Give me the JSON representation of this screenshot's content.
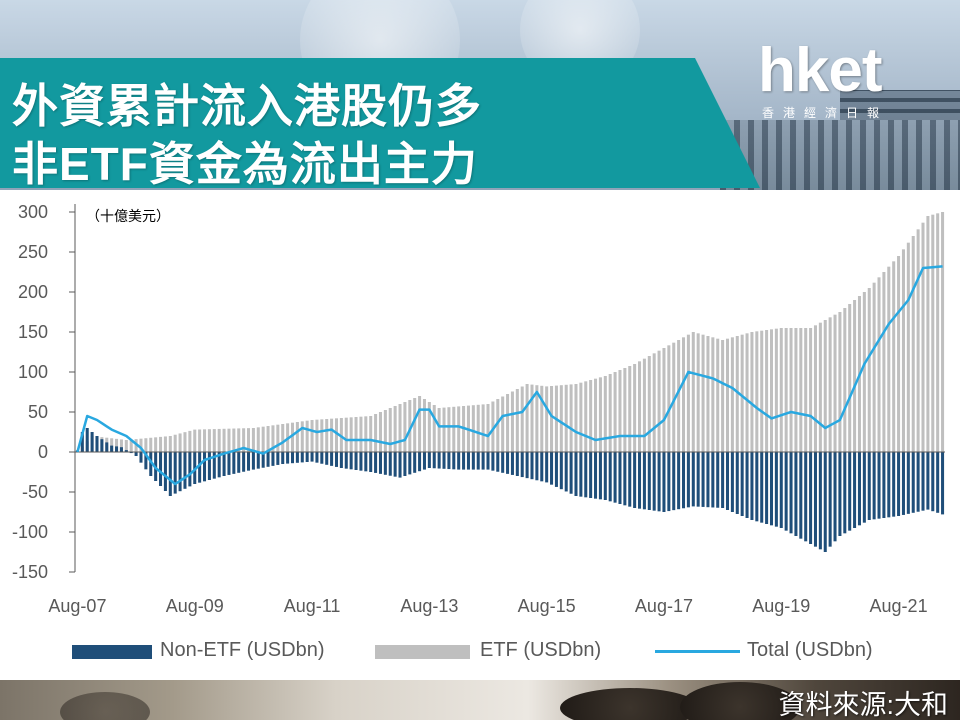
{
  "title": {
    "line1": "外資累計流入港股仍多",
    "line2": "非ETF資金為流出主力"
  },
  "logo": {
    "word": "hket",
    "subtitle": "香港經濟日報"
  },
  "source": "資料來源:大和",
  "colors": {
    "title_band": "#12999f",
    "non_etf": "#1f4e79",
    "etf": "#bfbfbf",
    "total": "#29a8e0"
  },
  "chart_data": {
    "type": "bar",
    "unit_label": "（十億美元）",
    "ylim": [
      -150,
      300
    ],
    "y_ticks": [
      "300",
      "250",
      "200",
      "150",
      "100",
      "50",
      "0",
      "-50",
      "-100",
      "-150"
    ],
    "x_tick_labels": [
      "Aug-07",
      "Aug-09",
      "Aug-11",
      "Aug-13",
      "Aug-15",
      "Aug-17",
      "Aug-19",
      "Aug-21"
    ],
    "period": {
      "start": "2007-08",
      "end": "2022-05",
      "frequency": "monthly"
    },
    "grid": false,
    "legend_position": "bottom",
    "series": [
      {
        "name": "Non-ETF (USDbn)",
        "kind": "bar",
        "anchors": [
          [
            "2007-08",
            2
          ],
          [
            "2007-09",
            25
          ],
          [
            "2007-10",
            30
          ],
          [
            "2007-12",
            20
          ],
          [
            "2008-03",
            8
          ],
          [
            "2008-05",
            6
          ],
          [
            "2008-08",
            -5
          ],
          [
            "2008-11",
            -30
          ],
          [
            "2009-03",
            -55
          ],
          [
            "2009-08",
            -40
          ],
          [
            "2010-02",
            -30
          ],
          [
            "2010-08",
            -22
          ],
          [
            "2011-02",
            -15
          ],
          [
            "2011-08",
            -12
          ],
          [
            "2012-02",
            -20
          ],
          [
            "2012-08",
            -25
          ],
          [
            "2013-02",
            -32
          ],
          [
            "2013-08",
            -20
          ],
          [
            "2014-02",
            -22
          ],
          [
            "2014-08",
            -22
          ],
          [
            "2015-02",
            -30
          ],
          [
            "2015-08",
            -38
          ],
          [
            "2016-02",
            -55
          ],
          [
            "2016-08",
            -60
          ],
          [
            "2017-02",
            -70
          ],
          [
            "2017-08",
            -75
          ],
          [
            "2018-02",
            -68
          ],
          [
            "2018-08",
            -70
          ],
          [
            "2019-02",
            -85
          ],
          [
            "2019-08",
            -95
          ],
          [
            "2020-02",
            -115
          ],
          [
            "2020-05",
            -125
          ],
          [
            "2020-08",
            -105
          ],
          [
            "2021-02",
            -85
          ],
          [
            "2021-08",
            -80
          ],
          [
            "2022-02",
            -72
          ],
          [
            "2022-05",
            -78
          ]
        ]
      },
      {
        "name": "ETF (USDbn)",
        "kind": "bar",
        "anchors": [
          [
            "2007-08",
            0
          ],
          [
            "2007-11",
            20
          ],
          [
            "2008-06",
            15
          ],
          [
            "2009-03",
            20
          ],
          [
            "2009-08",
            28
          ],
          [
            "2010-08",
            30
          ],
          [
            "2011-08",
            40
          ],
          [
            "2012-08",
            45
          ],
          [
            "2013-06",
            70
          ],
          [
            "2013-10",
            55
          ],
          [
            "2014-08",
            60
          ],
          [
            "2015-04",
            85
          ],
          [
            "2015-08",
            82
          ],
          [
            "2016-02",
            85
          ],
          [
            "2016-08",
            95
          ],
          [
            "2017-02",
            110
          ],
          [
            "2017-08",
            130
          ],
          [
            "2018-02",
            150
          ],
          [
            "2018-08",
            140
          ],
          [
            "2019-02",
            150
          ],
          [
            "2019-08",
            155
          ],
          [
            "2020-02",
            155
          ],
          [
            "2020-08",
            175
          ],
          [
            "2021-02",
            205
          ],
          [
            "2021-08",
            245
          ],
          [
            "2022-02",
            295
          ],
          [
            "2022-05",
            300
          ]
        ]
      },
      {
        "name": "Total (USDbn)",
        "kind": "line",
        "anchors": [
          [
            "2007-08",
            0
          ],
          [
            "2007-10",
            45
          ],
          [
            "2007-12",
            40
          ],
          [
            "2008-03",
            28
          ],
          [
            "2008-06",
            20
          ],
          [
            "2008-09",
            5
          ],
          [
            "2008-12",
            -20
          ],
          [
            "2009-04",
            -40
          ],
          [
            "2009-07",
            -28
          ],
          [
            "2009-10",
            -10
          ],
          [
            "2010-02",
            -2
          ],
          [
            "2010-06",
            5
          ],
          [
            "2010-10",
            -2
          ],
          [
            "2011-02",
            12
          ],
          [
            "2011-06",
            30
          ],
          [
            "2011-09",
            25
          ],
          [
            "2011-12",
            28
          ],
          [
            "2012-03",
            15
          ],
          [
            "2012-08",
            15
          ],
          [
            "2012-12",
            10
          ],
          [
            "2013-03",
            15
          ],
          [
            "2013-06",
            53
          ],
          [
            "2013-08",
            53
          ],
          [
            "2013-10",
            32
          ],
          [
            "2014-02",
            32
          ],
          [
            "2014-08",
            20
          ],
          [
            "2014-11",
            45
          ],
          [
            "2015-03",
            50
          ],
          [
            "2015-06",
            75
          ],
          [
            "2015-09",
            45
          ],
          [
            "2016-02",
            25
          ],
          [
            "2016-06",
            15
          ],
          [
            "2016-11",
            20
          ],
          [
            "2017-04",
            20
          ],
          [
            "2017-08",
            40
          ],
          [
            "2018-01",
            100
          ],
          [
            "2018-06",
            92
          ],
          [
            "2018-10",
            80
          ],
          [
            "2019-03",
            55
          ],
          [
            "2019-06",
            42
          ],
          [
            "2019-10",
            50
          ],
          [
            "2020-02",
            45
          ],
          [
            "2020-05",
            30
          ],
          [
            "2020-08",
            40
          ],
          [
            "2021-01",
            110
          ],
          [
            "2021-06",
            160
          ],
          [
            "2021-10",
            190
          ],
          [
            "2022-01",
            230
          ],
          [
            "2022-05",
            232
          ]
        ]
      }
    ]
  }
}
